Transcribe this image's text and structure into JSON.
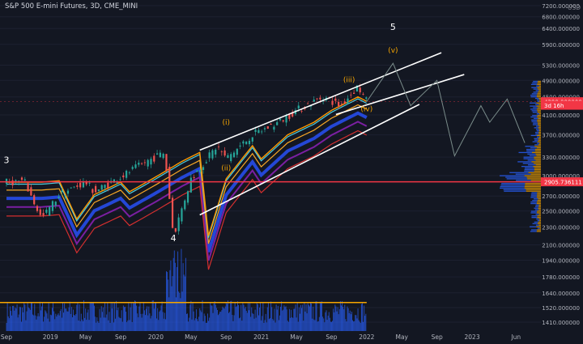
{
  "header": {
    "title": "S&P 500 E-mini Futures, 3D, CME_MINI",
    "currency": "USD"
  },
  "colors": {
    "background": "#131722",
    "candle_up": "#26a69a",
    "candle_down": "#ef5350",
    "volume": "#2962ff",
    "price_tag_current": "#f23645",
    "support_line": "#f23645",
    "channel_lines": "#ffffff",
    "wave_label": "#f7a600",
    "projection_line": "#7a8c8a"
  },
  "chart_data": {
    "type": "candlestick",
    "xlabel": "",
    "ylabel": "",
    "x_ticks": [
      "Sep",
      "2019",
      "May",
      "Sep",
      "2020",
      "May",
      "Sep",
      "2021",
      "May",
      "Sep",
      "2022",
      "May",
      "Sep",
      "2023",
      "Jun"
    ],
    "y_ticks": [
      "7200.000000",
      "6800.000000",
      "6400.000000",
      "5900.000000",
      "5300.000000",
      "4900.000000",
      "4500.000000",
      "4100.000000",
      "3700.000000",
      "3300.000000",
      "3000.000000",
      "2700.000000",
      "2500.000000",
      "2300.000000",
      "2100.000000",
      "1940.000000",
      "1780.000000",
      "1640.000000",
      "1520.000000",
      "1410.000000"
    ],
    "y_scale": "log",
    "price_path": [
      {
        "date": "2018-08",
        "price": 2900
      },
      {
        "date": "2018-10",
        "price": 2920
      },
      {
        "date": "2018-12",
        "price": 2400
      },
      {
        "date": "2019-02",
        "price": 2720
      },
      {
        "date": "2019-05",
        "price": 2900
      },
      {
        "date": "2019-06",
        "price": 2760
      },
      {
        "date": "2019-09",
        "price": 2980
      },
      {
        "date": "2019-12",
        "price": 3230
      },
      {
        "date": "2020-02",
        "price": 3380
      },
      {
        "date": "2020-03",
        "price": 2200
      },
      {
        "date": "2020-05",
        "price": 2950
      },
      {
        "date": "2020-08",
        "price": 3500
      },
      {
        "date": "2020-09",
        "price": 3270
      },
      {
        "date": "2020-12",
        "price": 3700
      },
      {
        "date": "2021-03",
        "price": 3950
      },
      {
        "date": "2021-05",
        "price": 4200
      },
      {
        "date": "2021-08",
        "price": 4500
      },
      {
        "date": "2021-10",
        "price": 4300
      },
      {
        "date": "2021-12",
        "price": 4750
      },
      {
        "date": "2022-01",
        "price": 4390
      }
    ],
    "projection_path": [
      {
        "date": "2022-01",
        "price": 4390
      },
      {
        "date": "2022-04",
        "price": 5350
      },
      {
        "date": "2022-06",
        "price": 4300
      },
      {
        "date": "2022-09",
        "price": 4900
      },
      {
        "date": "2022-11",
        "price": 3320
      },
      {
        "date": "2023-02",
        "price": 4300
      },
      {
        "date": "2023-03",
        "price": 3950
      },
      {
        "date": "2023-05",
        "price": 4450
      },
      {
        "date": "2023-07",
        "price": 3550
      }
    ],
    "wave_labels": [
      {
        "text": "3",
        "date": "2018-08",
        "price": 3200
      },
      {
        "text": "4",
        "date": "2020-03",
        "price": 2140
      },
      {
        "text": "5",
        "date": "2022-04",
        "price": 6350
      },
      {
        "text": "(i)",
        "date": "2020-09",
        "price": 3900
      },
      {
        "text": "(ii)",
        "date": "2020-09",
        "price": 3080
      },
      {
        "text": "(iii)",
        "date": "2021-11",
        "price": 4850
      },
      {
        "text": "(iv)",
        "date": "2022-01",
        "price": 4180
      },
      {
        "text": "(v)",
        "date": "2022-04",
        "price": 5650
      }
    ],
    "horizontal_line": {
      "price": 2905.736111
    },
    "current_price_line": {
      "price": 4390
    },
    "price_tags": [
      {
        "label": "4390.000000",
        "price": 4390
      },
      {
        "label": "3d 16h",
        "price": 4310
      },
      {
        "label": "2905.736111",
        "price": 2905.736111
      }
    ],
    "volume_level": 1560
  }
}
